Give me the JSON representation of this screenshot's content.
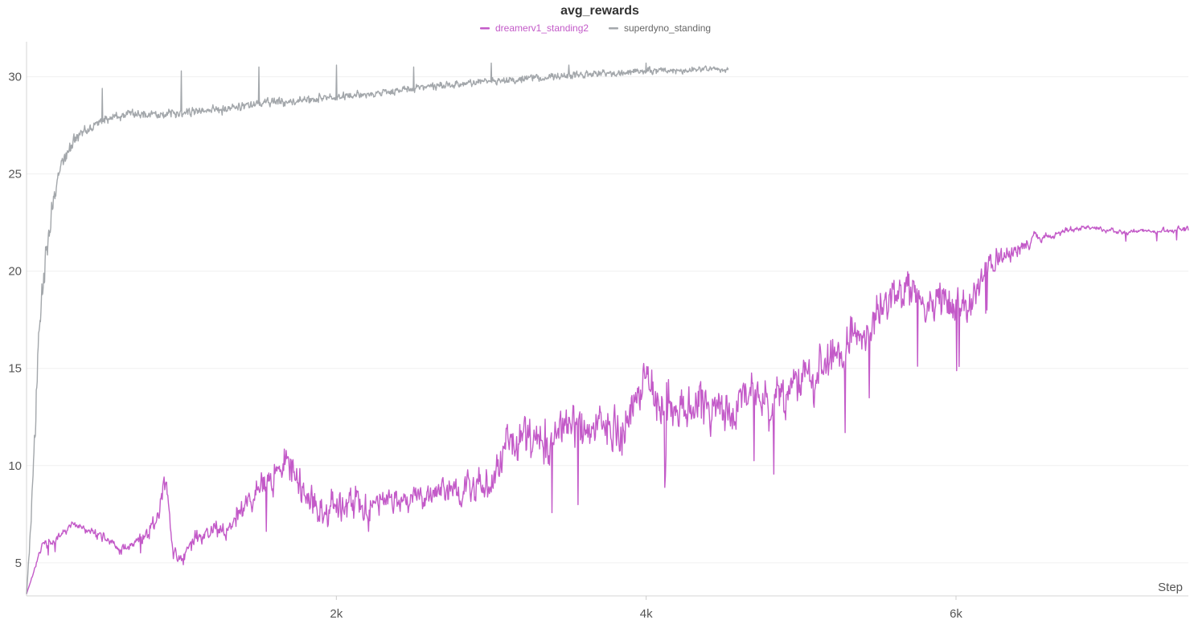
{
  "chart_data": {
    "type": "line",
    "title": "avg_rewards",
    "xlabel": "Step",
    "ylabel": "",
    "xlim": [
      0,
      7500
    ],
    "ylim": [
      3.3,
      31.8
    ],
    "x_ticks": [
      2000,
      4000,
      6000
    ],
    "x_tick_labels": [
      "2k",
      "4k",
      "6k"
    ],
    "y_ticks": [
      5,
      10,
      15,
      20,
      25,
      30
    ],
    "y_tick_labels": [
      "5",
      "10",
      "15",
      "20",
      "25",
      "30"
    ],
    "grid": true,
    "legend_position": "top-center",
    "series": [
      {
        "name": "dreamerv1_standing2",
        "color": "#c35ac8",
        "x": [
          0,
          100,
          200,
          300,
          400,
          500,
          600,
          700,
          800,
          850,
          900,
          950,
          1000,
          1100,
          1200,
          1300,
          1400,
          1500,
          1600,
          1700,
          1800,
          1900,
          2000,
          2100,
          2200,
          2300,
          2400,
          2500,
          2600,
          2700,
          2800,
          2900,
          3000,
          3100,
          3200,
          3300,
          3400,
          3500,
          3600,
          3700,
          3800,
          3900,
          4000,
          4100,
          4200,
          4300,
          4400,
          4500,
          4600,
          4700,
          4800,
          4900,
          5000,
          5100,
          5200,
          5300,
          5400,
          5500,
          5600,
          5700,
          5800,
          5900,
          6000,
          6100,
          6200,
          6300,
          6400,
          6500,
          6600,
          6700,
          6800,
          6900,
          7000,
          7100,
          7200,
          7300,
          7400,
          7500
        ],
        "values": [
          3.4,
          5.9,
          6.2,
          7.0,
          6.6,
          6.4,
          5.6,
          6.1,
          6.6,
          7.6,
          9.4,
          5.3,
          5.2,
          6.3,
          6.7,
          6.6,
          7.9,
          8.9,
          9.6,
          10.0,
          8.3,
          7.4,
          8.0,
          8.3,
          7.7,
          8.7,
          8.1,
          8.6,
          8.4,
          9.0,
          8.6,
          9.0,
          8.8,
          11.5,
          11.6,
          11.3,
          10.8,
          12.2,
          12.0,
          12.4,
          11.7,
          12.6,
          14.2,
          13.3,
          13.0,
          13.0,
          13.7,
          12.4,
          13.5,
          13.8,
          12.9,
          13.4,
          14.4,
          14.7,
          15.2,
          16.3,
          16.9,
          17.8,
          18.4,
          19.0,
          18.4,
          18.4,
          18.2,
          18.6,
          20.2,
          20.7,
          21.0,
          21.6,
          21.8,
          22.1,
          22.2,
          22.2,
          22.1,
          22.0,
          22.1,
          22.0,
          22.1,
          22.2
        ],
        "noise": [
          0,
          0.25,
          0.25,
          0.3,
          0.3,
          0.3,
          0.3,
          0.3,
          0.6,
          0.6,
          0.8,
          0.5,
          0.5,
          0.6,
          0.6,
          0.8,
          1.0,
          1.1,
          1.2,
          1.2,
          1.2,
          1.2,
          1.2,
          1.2,
          1.2,
          1.1,
          1.0,
          0.9,
          0.9,
          1.0,
          1.0,
          1.1,
          1.2,
          1.4,
          1.5,
          1.5,
          1.6,
          1.7,
          1.7,
          1.7,
          1.7,
          1.7,
          1.7,
          1.7,
          1.7,
          1.7,
          1.6,
          1.6,
          1.6,
          1.6,
          1.6,
          1.6,
          1.6,
          1.6,
          1.6,
          1.6,
          1.6,
          1.6,
          1.6,
          1.6,
          1.5,
          1.5,
          1.4,
          1.2,
          1.0,
          0.8,
          0.5,
          0.35,
          0.25,
          0.2,
          0.2,
          0.2,
          0.2,
          0.2,
          0.2,
          0.2,
          0.2,
          0.2
        ]
      },
      {
        "name": "superdyno_standing",
        "color": "#a3a7ab",
        "x": [
          0,
          25,
          50,
          75,
          100,
          130,
          160,
          200,
          250,
          300,
          350,
          400,
          450,
          500,
          600,
          700,
          800,
          900,
          1000,
          1100,
          1200,
          1300,
          1400,
          1500,
          1600,
          1700,
          1800,
          1900,
          2000,
          2200,
          2400,
          2600,
          2800,
          3000,
          3200,
          3400,
          3600,
          3800,
          4000,
          4200,
          4400,
          4530
        ],
        "values": [
          3.4,
          6.5,
          10.8,
          15.5,
          19.0,
          21.2,
          23.0,
          24.8,
          25.9,
          26.6,
          27.1,
          27.4,
          27.6,
          27.8,
          28.0,
          28.1,
          28.1,
          28.1,
          28.2,
          28.2,
          28.3,
          28.4,
          28.5,
          28.6,
          28.7,
          28.7,
          28.8,
          28.9,
          28.9,
          29.1,
          29.3,
          29.5,
          29.6,
          29.8,
          29.9,
          30.0,
          30.1,
          30.2,
          30.3,
          30.3,
          30.4,
          30.3
        ],
        "noise": [
          0,
          0.5,
          1.1,
          1.3,
          1.2,
          0.9,
          0.8,
          0.6,
          0.5,
          0.45,
          0.4,
          0.4,
          0.35,
          0.35,
          0.3,
          0.3,
          0.3,
          0.3,
          0.3,
          0.3,
          0.3,
          0.3,
          0.3,
          0.3,
          0.3,
          0.3,
          0.3,
          0.3,
          0.3,
          0.25,
          0.25,
          0.25,
          0.25,
          0.25,
          0.25,
          0.25,
          0.25,
          0.25,
          0.25,
          0.2,
          0.2,
          0.2
        ],
        "spikes": [
          [
            490,
            29.4
          ],
          [
            1000,
            30.3
          ],
          [
            1500,
            30.5
          ],
          [
            2000,
            30.6
          ],
          [
            2500,
            30.5
          ],
          [
            3000,
            30.7
          ],
          [
            3500,
            30.6
          ],
          [
            4000,
            30.7
          ]
        ]
      }
    ]
  }
}
